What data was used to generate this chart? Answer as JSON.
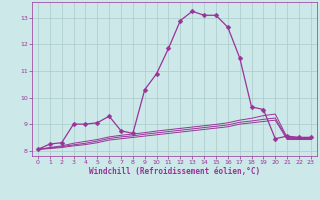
{
  "bg_color": "#cce8e8",
  "grid_color": "#aacccc",
  "line_color": "#993399",
  "xlabel": "Windchill (Refroidissement éolien,°C)",
  "xlim": [
    -0.5,
    23.5
  ],
  "ylim": [
    7.8,
    13.6
  ],
  "yticks": [
    8,
    9,
    10,
    11,
    12,
    13
  ],
  "xticks": [
    0,
    1,
    2,
    3,
    4,
    5,
    6,
    7,
    8,
    9,
    10,
    11,
    12,
    13,
    14,
    15,
    16,
    17,
    18,
    19,
    20,
    21,
    22,
    23
  ],
  "line1_x": [
    0,
    1,
    2,
    3,
    4,
    5,
    6,
    7,
    8,
    9,
    10,
    11,
    12,
    13,
    14,
    15,
    16,
    17,
    18,
    19,
    20,
    21,
    22,
    23
  ],
  "line1_y": [
    8.05,
    8.25,
    8.3,
    9.0,
    9.0,
    9.05,
    9.3,
    8.75,
    8.65,
    10.3,
    10.9,
    11.85,
    12.9,
    13.25,
    13.1,
    13.1,
    12.65,
    11.5,
    9.65,
    9.55,
    8.45,
    8.55,
    8.5,
    8.5
  ],
  "line2_x": [
    0,
    1,
    2,
    3,
    4,
    5,
    6,
    7,
    8,
    9,
    10,
    11,
    12,
    13,
    14,
    15,
    16,
    17,
    18,
    19,
    20,
    21,
    22,
    23
  ],
  "line2_y": [
    8.05,
    8.12,
    8.18,
    8.28,
    8.35,
    8.42,
    8.52,
    8.58,
    8.63,
    8.68,
    8.74,
    8.79,
    8.84,
    8.89,
    8.94,
    8.99,
    9.05,
    9.15,
    9.22,
    9.32,
    9.38,
    8.5,
    8.5,
    8.5
  ],
  "line3_x": [
    0,
    1,
    2,
    3,
    4,
    5,
    6,
    7,
    8,
    9,
    10,
    11,
    12,
    13,
    14,
    15,
    16,
    17,
    18,
    19,
    20,
    21,
    22,
    23
  ],
  "line3_y": [
    8.05,
    8.1,
    8.15,
    8.22,
    8.28,
    8.36,
    8.46,
    8.52,
    8.56,
    8.62,
    8.67,
    8.72,
    8.77,
    8.82,
    8.87,
    8.92,
    8.97,
    9.07,
    9.12,
    9.18,
    9.23,
    8.46,
    8.46,
    8.46
  ],
  "line4_x": [
    0,
    1,
    2,
    3,
    4,
    5,
    6,
    7,
    8,
    9,
    10,
    11,
    12,
    13,
    14,
    15,
    16,
    17,
    18,
    19,
    20,
    21,
    22,
    23
  ],
  "line4_y": [
    8.05,
    8.08,
    8.12,
    8.18,
    8.23,
    8.3,
    8.4,
    8.45,
    8.5,
    8.55,
    8.6,
    8.65,
    8.7,
    8.75,
    8.8,
    8.85,
    8.9,
    9.0,
    9.05,
    9.1,
    9.15,
    8.42,
    8.42,
    8.42
  ]
}
